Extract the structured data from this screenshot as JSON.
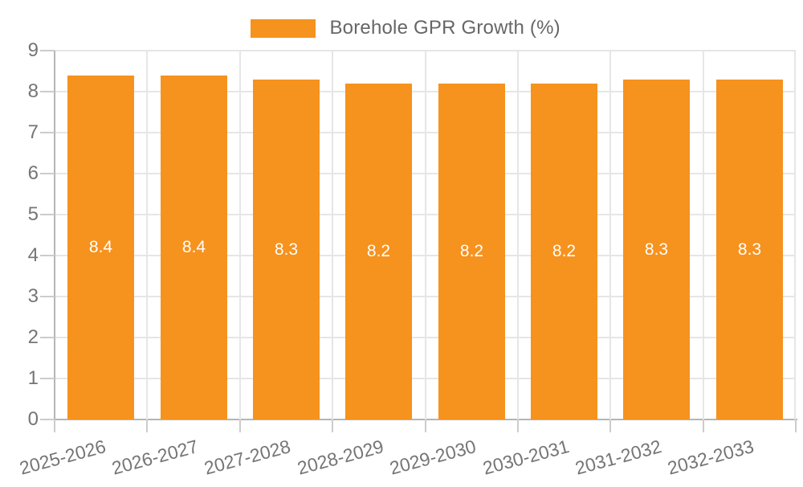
{
  "chart_data": {
    "type": "bar",
    "title": "",
    "categories": [
      "2025-2026",
      "2026-2027",
      "2027-2028",
      "2028-2029",
      "2029-2030",
      "2030-2031",
      "2031-2032",
      "2032-2033"
    ],
    "series": [
      {
        "name": "Borehole GPR Growth (%)",
        "values": [
          8.4,
          8.4,
          8.3,
          8.2,
          8.2,
          8.2,
          8.3,
          8.3
        ]
      }
    ],
    "bar_value_labels": [
      "8.4",
      "8.4",
      "8.3",
      "8.2",
      "8.2",
      "8.2",
      "8.3",
      "8.3"
    ],
    "xlabel": "",
    "ylabel": "",
    "ylim": [
      0,
      9
    ],
    "y_ticks": [
      0,
      1,
      2,
      3,
      4,
      5,
      6,
      7,
      8,
      9
    ],
    "grid": true,
    "legend_position": "top-center",
    "colors": {
      "bar": "#f6921e",
      "bar_label_text": "#ffffff",
      "axis_text": "#757575",
      "legend_text": "#666666",
      "gridline": "#e6e6e6",
      "axis_line": "#b5b5b5",
      "tick": "#cccccc",
      "background": "#ffffff"
    }
  }
}
